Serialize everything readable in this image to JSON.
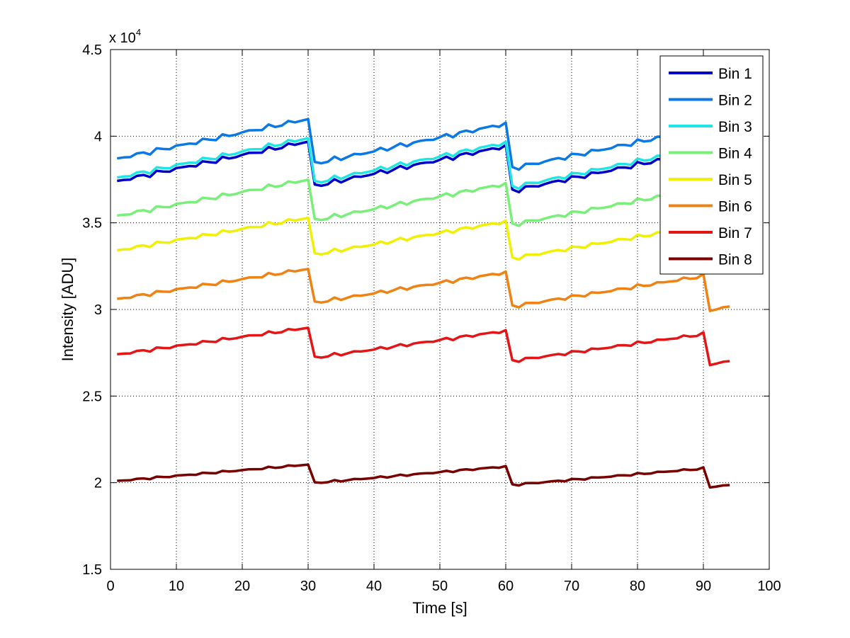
{
  "chart_data": {
    "type": "line",
    "title": "",
    "xlabel": "Time [s]",
    "ylabel": "Intensity [ADU]",
    "y_exponent_label": "x 10",
    "y_exponent_power": "4",
    "xlim": [
      0,
      100
    ],
    "ylim": [
      15000,
      45000
    ],
    "xticks": [
      0,
      10,
      20,
      30,
      40,
      50,
      60,
      70,
      80,
      90,
      100
    ],
    "xtick_labels": [
      "0",
      "10",
      "20",
      "30",
      "40",
      "50",
      "60",
      "70",
      "80",
      "90",
      "100"
    ],
    "yticks": [
      15000,
      20000,
      25000,
      30000,
      35000,
      40000,
      45000
    ],
    "ytick_labels": [
      "1.5",
      "2",
      "2.5",
      "3",
      "3.5",
      "4",
      "4.5"
    ],
    "grid": true,
    "legend_position": "top-right",
    "x": [
      1,
      2,
      3,
      4,
      5,
      6,
      7,
      8,
      9,
      10,
      11,
      12,
      13,
      14,
      15,
      16,
      17,
      18,
      19,
      20,
      21,
      22,
      23,
      24,
      25,
      26,
      27,
      28,
      29,
      30,
      31,
      32,
      33,
      34,
      35,
      36,
      37,
      38,
      39,
      40,
      41,
      42,
      43,
      44,
      45,
      46,
      47,
      48,
      49,
      50,
      51,
      52,
      53,
      54,
      55,
      56,
      57,
      58,
      59,
      60,
      61,
      62,
      63,
      64,
      65,
      66,
      67,
      68,
      69,
      70,
      71,
      72,
      73,
      74,
      75,
      76,
      77,
      78,
      79,
      80,
      81,
      82,
      83,
      84,
      85,
      86,
      87,
      88,
      89,
      90,
      91,
      92,
      93,
      94
    ],
    "series": [
      {
        "name": "Bin 1",
        "color": "#0000c8",
        "offset": 37400,
        "amplitude": 2300
      },
      {
        "name": "Bin 2",
        "color": "#0a78e6",
        "offset": 38700,
        "amplitude": 2300
      },
      {
        "name": "Bin 3",
        "color": "#1ee6e6",
        "offset": 37600,
        "amplitude": 2300
      },
      {
        "name": "Bin 4",
        "color": "#78f078",
        "offset": 35400,
        "amplitude": 2100
      },
      {
        "name": "Bin 5",
        "color": "#f0f000",
        "offset": 33400,
        "amplitude": 1900
      },
      {
        "name": "Bin 6",
        "color": "#f08214",
        "offset": 30600,
        "amplitude": 1750
      },
      {
        "name": "Bin 7",
        "color": "#e61414",
        "offset": 27400,
        "amplitude": 1550
      },
      {
        "name": "Bin 8",
        "color": "#780000",
        "offset": 20100,
        "amplitude": 950
      }
    ],
    "period_s": 30,
    "shape_note": "sawtooth: rises over each 30 s period, drops at 30, 60, 90 s"
  }
}
